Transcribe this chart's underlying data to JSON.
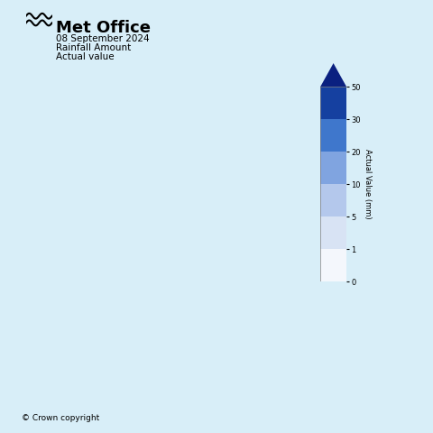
{
  "title_line1": "Met Office",
  "title_line2": "08 September 2024",
  "title_line3": "Rainfall Amount",
  "title_line4": "Actual value",
  "copyright_text": "© Crown copyright",
  "colorbar_label": "Actual Value (mm)",
  "colorbar_ticks": [
    0,
    1,
    5,
    10,
    20,
    30,
    50
  ],
  "colorbar_colors": [
    "#ffffff",
    "#e8eef8",
    "#c8d8f0",
    "#a0b8e8",
    "#6090d8",
    "#2060c0",
    "#0a2080"
  ],
  "background_color": "#d8eef8",
  "map_background": "#ffffff",
  "ireland_color": "#d0d0d0",
  "figsize": [
    4.8,
    4.8
  ],
  "dpi": 100
}
